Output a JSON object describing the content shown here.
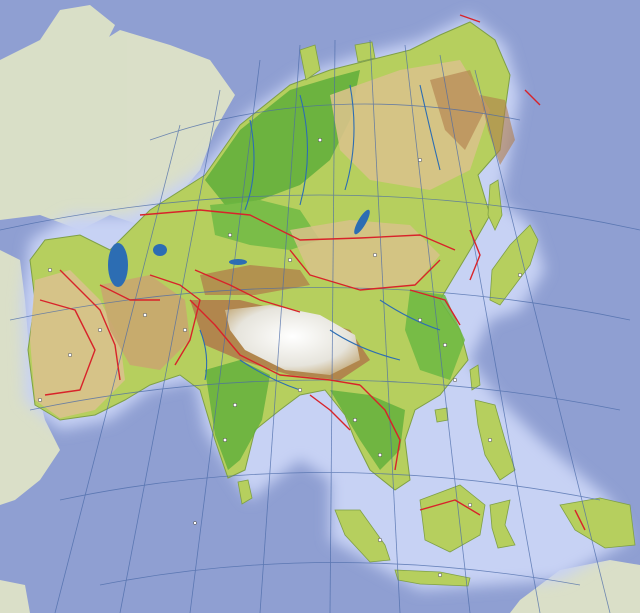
{
  "map": {
    "projection": "azimuthal",
    "style": "physical relief",
    "labels": [],
    "colors": {
      "ocean": "#8f9fd2",
      "ocean_halo": "#c7d2f4",
      "land_context": "#e2e6c6",
      "lowland_green": "#5fae3a",
      "plain_light": "#b6cf5e",
      "upland_tan": "#d8c28a",
      "mountain_brown": "#b07d4b",
      "high_plateau": "#efefef",
      "border": "#d8232a",
      "graticule": "#4a6aa8",
      "river": "#2c6db3",
      "city_dot": "#ffffff"
    }
  }
}
